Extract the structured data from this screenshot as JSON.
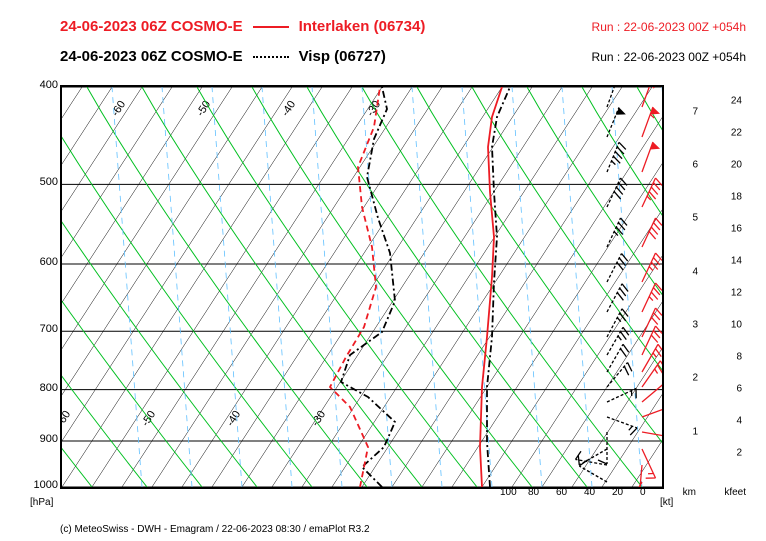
{
  "header": {
    "row1": {
      "date": "24-06-2023 06Z COSMO-E",
      "station": "Interlaken (06734)",
      "run": "Run : 22-06-2023 00Z +054h",
      "color": "#ed1c24"
    },
    "row2": {
      "date": "24-06-2023 06Z COSMO-E",
      "station": "Visp (06727)",
      "run": "Run : 22-06-2023 00Z +054h",
      "color": "#000000"
    }
  },
  "axes": {
    "pressure": {
      "ticks": [
        400,
        500,
        600,
        700,
        800,
        900,
        1000
      ],
      "unit": "[hPa]"
    },
    "km": {
      "ticks": [
        1,
        2,
        3,
        4,
        5,
        6,
        7
      ],
      "unit": "km"
    },
    "kfeet": {
      "ticks": [
        2,
        4,
        6,
        8,
        10,
        12,
        14,
        16,
        18,
        20,
        22,
        24
      ],
      "unit": "kfeet"
    },
    "temp_diag_labels": [
      -60,
      -50,
      -40,
      -30
    ],
    "bottom_kt": {
      "ticks": [
        100,
        80,
        60,
        40,
        20,
        0
      ],
      "unit": "[kt]"
    }
  },
  "colors": {
    "bg": "#ffffff",
    "grid_black": "#000000",
    "dry_adiabat": "#00c020",
    "moist_adiabat": "#00c020",
    "mixing": "#60c0ff",
    "series1": "#ed1c24",
    "series2": "#000000"
  },
  "styling": {
    "line_width_series": 1.8,
    "diag_width": 0.5,
    "adiabat_width": 1,
    "font_size_header": 15,
    "font_size_axis": 11
  },
  "series": {
    "interlaken": {
      "temp": [
        [
          420,
          400
        ],
        [
          418,
          360
        ],
        [
          420,
          300
        ],
        [
          425,
          250
        ],
        [
          430,
          190
        ],
        [
          432,
          150
        ],
        [
          428,
          105
        ],
        [
          426,
          60
        ],
        [
          430,
          30
        ],
        [
          440,
          0
        ]
      ],
      "dew": [
        [
          298,
          400
        ],
        [
          306,
          360
        ],
        [
          288,
          320
        ],
        [
          268,
          300
        ],
        [
          284,
          270
        ],
        [
          302,
          240
        ],
        [
          314,
          200
        ],
        [
          310,
          160
        ],
        [
          300,
          120
        ],
        [
          296,
          80
        ],
        [
          312,
          40
        ],
        [
          318,
          0
        ]
      ],
      "barbs": [
        {
          "y": 395,
          "dir": 210,
          "spd": 15
        },
        {
          "y": 378,
          "dir": 185,
          "spd": 15
        },
        {
          "y": 362,
          "dir": 155,
          "spd": 15
        },
        {
          "y": 345,
          "dir": 100,
          "spd": 15
        },
        {
          "y": 330,
          "dir": 70,
          "spd": 20
        },
        {
          "y": 315,
          "dir": 50,
          "spd": 20
        },
        {
          "y": 300,
          "dir": 35,
          "spd": 25
        },
        {
          "y": 285,
          "dir": 30,
          "spd": 25
        },
        {
          "y": 268,
          "dir": 25,
          "spd": 30
        },
        {
          "y": 250,
          "dir": 25,
          "spd": 30
        },
        {
          "y": 225,
          "dir": 25,
          "spd": 35
        },
        {
          "y": 195,
          "dir": 25,
          "spd": 35
        },
        {
          "y": 160,
          "dir": 25,
          "spd": 40
        },
        {
          "y": 120,
          "dir": 25,
          "spd": 45
        },
        {
          "y": 85,
          "dir": 20,
          "spd": 50
        },
        {
          "y": 50,
          "dir": 20,
          "spd": 55
        },
        {
          "y": 20,
          "dir": 20,
          "spd": 55
        }
      ]
    },
    "visp": {
      "temp": [
        [
          428,
          400
        ],
        [
          425,
          355
        ],
        [
          425,
          300
        ],
        [
          430,
          250
        ],
        [
          432,
          195
        ],
        [
          435,
          150
        ],
        [
          432,
          105
        ],
        [
          430,
          60
        ],
        [
          435,
          30
        ],
        [
          448,
          0
        ]
      ],
      "dew": [
        [
          320,
          400
        ],
        [
          300,
          380
        ],
        [
          322,
          360
        ],
        [
          333,
          335
        ],
        [
          306,
          310
        ],
        [
          279,
          295
        ],
        [
          288,
          268
        ],
        [
          320,
          245
        ],
        [
          333,
          214
        ],
        [
          328,
          166
        ],
        [
          316,
          131
        ],
        [
          305,
          90
        ],
        [
          312,
          52
        ],
        [
          325,
          22
        ],
        [
          320,
          0
        ]
      ],
      "barbs": [
        {
          "y": 395,
          "dir": 300,
          "spd": 10
        },
        {
          "y": 378,
          "dir": 280,
          "spd": 10
        },
        {
          "y": 362,
          "dir": 240,
          "spd": 10
        },
        {
          "y": 345,
          "dir": 180,
          "spd": 10
        },
        {
          "y": 330,
          "dir": 110,
          "spd": 15
        },
        {
          "y": 315,
          "dir": 65,
          "spd": 15
        },
        {
          "y": 300,
          "dir": 40,
          "spd": 20
        },
        {
          "y": 285,
          "dir": 30,
          "spd": 20
        },
        {
          "y": 268,
          "dir": 30,
          "spd": 25
        },
        {
          "y": 250,
          "dir": 28,
          "spd": 25
        },
        {
          "y": 225,
          "dir": 28,
          "spd": 30
        },
        {
          "y": 195,
          "dir": 27,
          "spd": 30
        },
        {
          "y": 160,
          "dir": 25,
          "spd": 35
        },
        {
          "y": 120,
          "dir": 25,
          "spd": 40
        },
        {
          "y": 85,
          "dir": 22,
          "spd": 45
        },
        {
          "y": 50,
          "dir": 22,
          "spd": 50
        },
        {
          "y": 20,
          "dir": 20,
          "spd": 50
        }
      ]
    }
  },
  "footer": "(c) MeteoSwiss - DWH - Emagram / 22-06-2023  08:30  / emaPlot R3.2"
}
